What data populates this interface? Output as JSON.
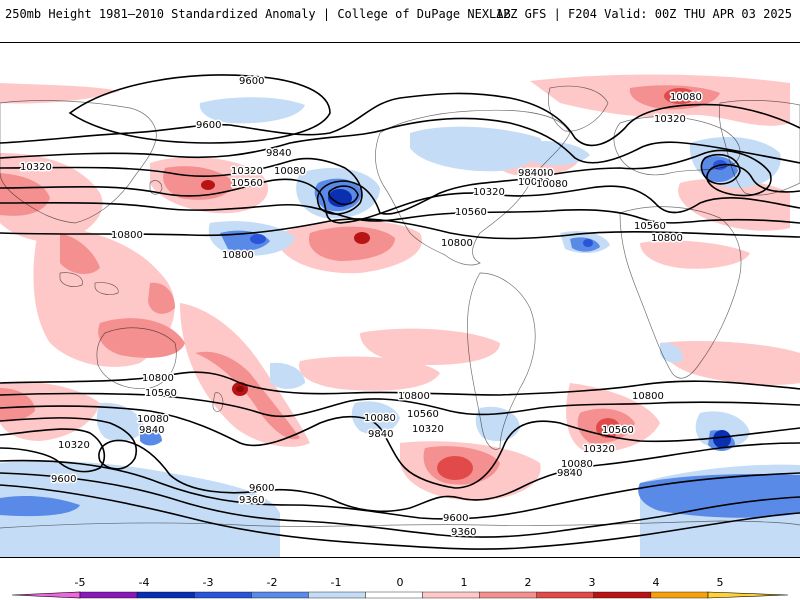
{
  "header": {
    "title": "250mb Height 1981–2010 Standardized Anomaly | College of DuPage NEXLAB",
    "run_info": "12Z GFS | F204 Valid: 00Z THU APR 03 2025"
  },
  "contour_labels": [
    {
      "text": "9600"
    },
    {
      "text": "9600"
    },
    {
      "text": "9840"
    },
    {
      "text": "10080"
    },
    {
      "text": "10320"
    },
    {
      "text": "10560"
    },
    {
      "text": "10320"
    },
    {
      "text": "10800"
    },
    {
      "text": "10800"
    },
    {
      "text": "10320"
    },
    {
      "text": "10560"
    },
    {
      "text": "9840"
    },
    {
      "text": "10080"
    },
    {
      "text": "10800"
    },
    {
      "text": "10080"
    },
    {
      "text": "10320"
    },
    {
      "text": "9840"
    },
    {
      "text": "10080"
    },
    {
      "text": "10560"
    },
    {
      "text": "10800"
    },
    {
      "text": "10800"
    },
    {
      "text": "10560"
    },
    {
      "text": "10080"
    },
    {
      "text": "9840"
    },
    {
      "text": "10320"
    },
    {
      "text": "9600"
    },
    {
      "text": "10800"
    },
    {
      "text": "10560"
    },
    {
      "text": "10080"
    },
    {
      "text": "9840"
    },
    {
      "text": "10320"
    },
    {
      "text": "10800"
    },
    {
      "text": "10560"
    },
    {
      "text": "10320"
    },
    {
      "text": "10080"
    },
    {
      "text": "9840"
    },
    {
      "text": "9600"
    },
    {
      "text": "9360"
    },
    {
      "text": "9600"
    },
    {
      "text": "9360"
    }
  ],
  "anomaly_scale": {
    "ticks": [
      "-5",
      "-4",
      "-3",
      "-2",
      "-1",
      "0",
      "1",
      "2",
      "3",
      "4",
      "5"
    ],
    "colors": [
      "#ee66dd",
      "#8a1ab8",
      "#0a2fb0",
      "#2a55d8",
      "#5a8ae8",
      "#c4dcf6",
      "#ffffff",
      "#ffc8c8",
      "#f49090",
      "#e24a4a",
      "#b81414",
      "#f6a010",
      "#ffd23a"
    ]
  }
}
